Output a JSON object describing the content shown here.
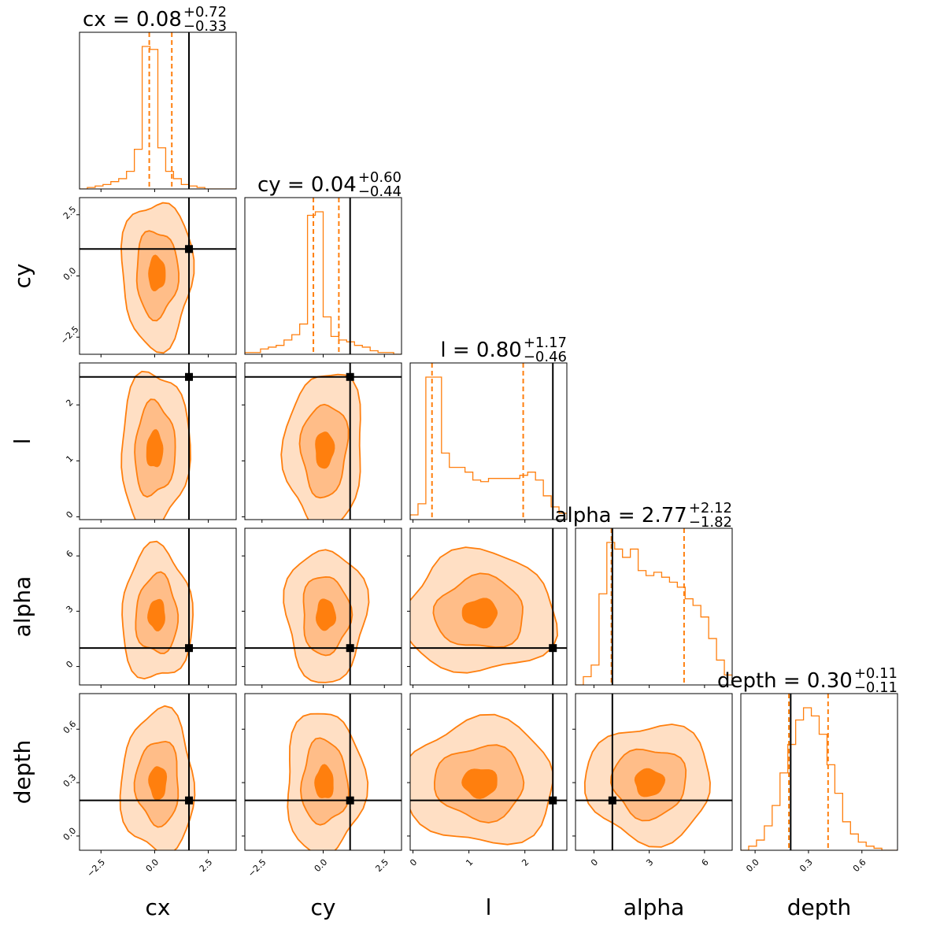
{
  "chart_data": {
    "type": "corner",
    "color": "#ff7f0e",
    "truth_color": "#000000",
    "parameters": [
      "cx",
      "cy",
      "l",
      "alpha",
      "depth"
    ],
    "axis_labels": [
      "cx",
      "cy",
      "l",
      "alpha",
      "depth"
    ],
    "titles": [
      {
        "text": "cx = 0.08",
        "sup": "+0.72",
        "sub": "−0.33"
      },
      {
        "text": "cy = 0.04",
        "sup": "+0.60",
        "sub": "−0.44"
      },
      {
        "text": "l = 0.80",
        "sup": "+1.17",
        "sub": "−0.46"
      },
      {
        "text": "alpha = 2.77",
        "sup": "+2.12",
        "sub": "−1.82"
      },
      {
        "text": "depth = 0.30",
        "sup": "+0.11",
        "sub": "−0.11"
      }
    ],
    "axis_ranges": [
      [
        -3.5,
        3.8
      ],
      [
        -3.2,
        3.2
      ],
      [
        -0.05,
        2.75
      ],
      [
        -1.0,
        7.5
      ],
      [
        -0.08,
        0.8
      ]
    ],
    "ticks": [
      {
        "values": [
          -2.5,
          0.0,
          2.5
        ],
        "labels": [
          "−2.5",
          "0.0",
          "2.5"
        ]
      },
      {
        "values": [
          -2.5,
          0.0,
          2.5
        ],
        "labels": [
          "−2.5",
          "0.0",
          "2.5"
        ]
      },
      {
        "values": [
          0,
          1,
          2
        ],
        "labels": [
          "0",
          "1",
          "2"
        ]
      },
      {
        "values": [
          0,
          3,
          6
        ],
        "labels": [
          "0",
          "3",
          "6"
        ]
      },
      {
        "values": [
          0.0,
          0.3,
          0.6
        ],
        "labels": [
          "0.0",
          "0.3",
          "0.6"
        ]
      }
    ],
    "truths": [
      1.6,
      1.1,
      2.5,
      1.0,
      0.2
    ],
    "quantiles": [
      [
        -0.25,
        0.08,
        0.8
      ],
      [
        -0.4,
        0.04,
        0.64
      ],
      [
        0.34,
        0.8,
        1.97
      ],
      [
        0.95,
        2.77,
        4.89
      ],
      [
        0.19,
        0.3,
        0.41
      ]
    ],
    "histograms": [
      {
        "edges_range": [
          -3.5,
          3.8
        ],
        "bins": 20,
        "counts": [
          0,
          0.01,
          0.02,
          0.03,
          0.05,
          0.07,
          0.12,
          0.27,
          0.97,
          0.95,
          0.28,
          0.12,
          0.07,
          0.03,
          0.02,
          0.01,
          0,
          0,
          0,
          0
        ]
      },
      {
        "edges_range": [
          -3.2,
          3.2
        ],
        "bins": 20,
        "counts": [
          0.01,
          0.01,
          0.03,
          0.04,
          0.05,
          0.08,
          0.11,
          0.17,
          0.78,
          0.8,
          0.21,
          0.1,
          0.08,
          0.07,
          0.05,
          0.04,
          0.02,
          0.01,
          0.01,
          0
        ]
      },
      {
        "edges_range": [
          -0.05,
          2.75
        ],
        "bins": 20,
        "counts": [
          0.03,
          0.1,
          0.9,
          0.9,
          0.42,
          0.33,
          0.33,
          0.3,
          0.25,
          0.24,
          0.26,
          0.26,
          0.26,
          0.26,
          0.28,
          0.3,
          0.25,
          0.15,
          0.08,
          0.04
        ]
      },
      {
        "edges_range": [
          -1.0,
          7.5
        ],
        "bins": 20,
        "counts": [
          0,
          0.05,
          0.12,
          0.55,
          0.86,
          0.82,
          0.77,
          0.82,
          0.69,
          0.66,
          0.68,
          0.65,
          0.62,
          0.59,
          0.52,
          0.48,
          0.41,
          0.28,
          0.15,
          0.06
        ]
      },
      {
        "edges_range": [
          -0.08,
          0.8
        ],
        "bins": 20,
        "counts": [
          0,
          0.02,
          0.05,
          0.12,
          0.22,
          0.38,
          0.52,
          0.64,
          0.7,
          0.66,
          0.57,
          0.42,
          0.28,
          0.14,
          0.08,
          0.04,
          0.02,
          0.01,
          0,
          0
        ]
      }
    ],
    "contour_levels": {
      "fills": [
        "#ffdfc4",
        "#ffbd88",
        "#ff7f0e"
      ],
      "line_color": "#ff7f0e",
      "widths": [
        2.2,
        1.3,
        0.5
      ]
    },
    "pairs": [
      {
        "row": 1,
        "col": 0,
        "center": [
          0.1,
          0.1
        ],
        "spread": [
          1.65,
          3.0
        ],
        "tilt": 0
      },
      {
        "row": 2,
        "col": 0,
        "center": [
          0.0,
          1.2
        ],
        "spread": [
          1.6,
          1.4
        ],
        "tilt": 0.05
      },
      {
        "row": 3,
        "col": 0,
        "center": [
          0.1,
          2.8
        ],
        "spread": [
          1.65,
          3.6
        ],
        "tilt": 0
      },
      {
        "row": 4,
        "col": 0,
        "center": [
          0.15,
          0.3
        ],
        "spread": [
          1.7,
          0.4
        ],
        "tilt": 0
      },
      {
        "row": 2,
        "col": 1,
        "center": [
          0.05,
          1.2
        ],
        "spread": [
          1.6,
          1.4
        ],
        "tilt": 0.05
      },
      {
        "row": 3,
        "col": 1,
        "center": [
          0.1,
          2.8
        ],
        "spread": [
          1.65,
          3.6
        ],
        "tilt": 0
      },
      {
        "row": 4,
        "col": 1,
        "center": [
          0.05,
          0.3
        ],
        "spread": [
          1.6,
          0.4
        ],
        "tilt": 0
      },
      {
        "row": 3,
        "col": 2,
        "center": [
          1.2,
          2.9
        ],
        "spread": [
          1.35,
          3.3
        ],
        "tilt": 0
      },
      {
        "row": 4,
        "col": 2,
        "center": [
          1.2,
          0.3
        ],
        "spread": [
          1.35,
          0.35
        ],
        "tilt": 0
      },
      {
        "row": 4,
        "col": 3,
        "center": [
          3.0,
          0.3
        ],
        "spread": [
          3.4,
          0.33
        ],
        "tilt": 0
      }
    ],
    "grid": false,
    "legend": "none"
  }
}
